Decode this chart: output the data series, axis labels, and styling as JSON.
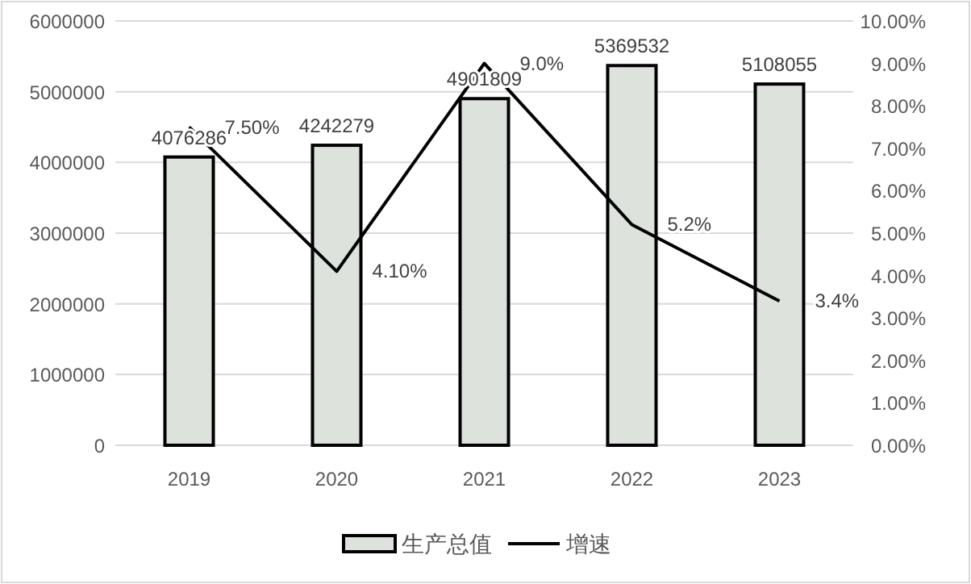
{
  "chart_data": {
    "type": "bar",
    "categories": [
      "2019",
      "2020",
      "2021",
      "2022",
      "2023"
    ],
    "series": [
      {
        "name": "生产总值",
        "color": "#dde2dd",
        "values": [
          4076286,
          4242279,
          4901809,
          5369532,
          5108055
        ],
        "value_labels": [
          "4076286",
          "4242279",
          "4901809",
          "5369532",
          "5108055"
        ]
      },
      {
        "name": "增速",
        "type": "line",
        "axis": "y2",
        "color": "#000000",
        "values": [
          7.5,
          4.1,
          9.0,
          5.2,
          3.4
        ],
        "value_labels": [
          "7.50%",
          "4.10%",
          "9.0%",
          "5.2%",
          "3.4%"
        ]
      }
    ],
    "ylim": [
      0,
      6000000
    ],
    "yticks": [
      0,
      1000000,
      2000000,
      3000000,
      4000000,
      5000000,
      6000000
    ],
    "y2lim": [
      0,
      10
    ],
    "y2ticks": [
      {
        "value": 0,
        "label": "0.00%"
      },
      {
        "value": 1,
        "label": "1.00%"
      },
      {
        "value": 2,
        "label": "2.00%"
      },
      {
        "value": 3,
        "label": "3.00%"
      },
      {
        "value": 4,
        "label": "4.00%"
      },
      {
        "value": 5,
        "label": "5.00%"
      },
      {
        "value": 6,
        "label": "6.00%"
      },
      {
        "value": 7,
        "label": "7.00%"
      },
      {
        "value": 8,
        "label": "8.00%"
      },
      {
        "value": 9,
        "label": "9.00%"
      },
      {
        "value": 10,
        "label": "10.00%"
      }
    ],
    "grid": "y",
    "legend": "bottom",
    "marker": "none",
    "line_style": "solid"
  }
}
